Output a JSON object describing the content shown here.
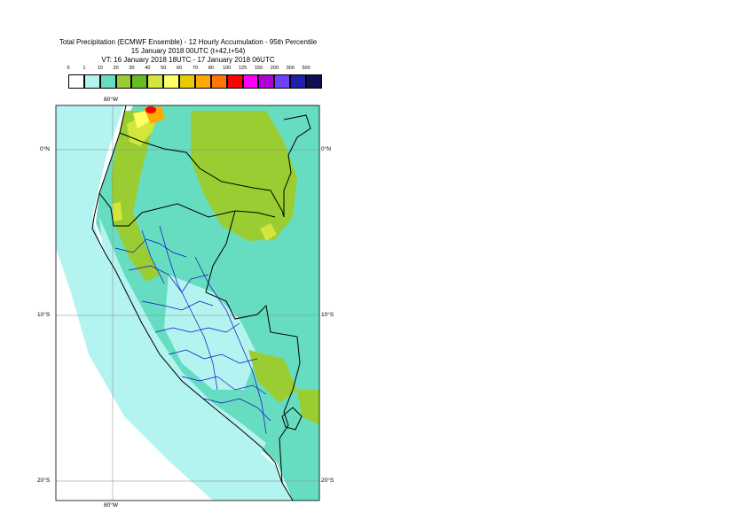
{
  "title": {
    "line1": "Total Precipitation (ECMWF Ensemble) - 12 Hourly Accumulation - 95th Percentile",
    "line2": "15 January 2018 00UTC (t+42,t+54)",
    "line3": "VT: 16 January 2018 18UTC - 17 January 2018 06UTC"
  },
  "legend": {
    "ticks": [
      "0",
      "1",
      "10",
      "20",
      "30",
      "40",
      "50",
      "60",
      "70",
      "80",
      "100",
      "125",
      "150",
      "200",
      "300",
      "500"
    ],
    "colors": [
      "#ffffff",
      "#b3f3f0",
      "#66ddc0",
      "#9acd32",
      "#66bb22",
      "#d2e63c",
      "#ffff66",
      "#e6cc00",
      "#ffaa00",
      "#ff7700",
      "#ff0000",
      "#ff00ff",
      "#b000d8",
      "#7040ff",
      "#2020aa",
      "#101050"
    ]
  },
  "axes": {
    "lon_top": "80°W",
    "lon_bottom": "80°W",
    "lat_labels": [
      "0°N",
      "10°S",
      "20°S"
    ]
  }
}
